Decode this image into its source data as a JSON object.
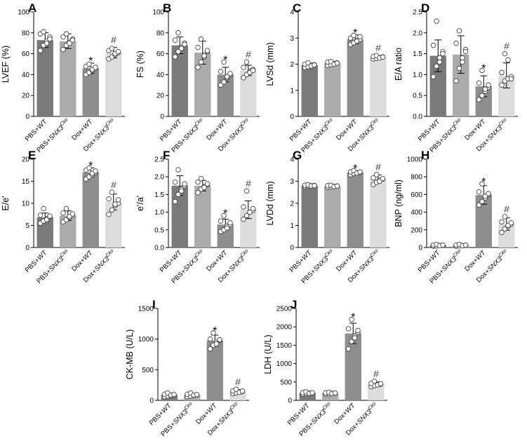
{
  "figure": {
    "categories": [
      {
        "prefix": "PBS+",
        "gene": "WT",
        "sup": ""
      },
      {
        "prefix": "PBS+",
        "gene": "SNX3",
        "sup": "Cko"
      },
      {
        "prefix": "Dox+",
        "gene": "WT",
        "sup": ""
      },
      {
        "prefix": "Dox+",
        "gene": "SNX3",
        "sup": "Cko"
      }
    ],
    "bar_colors": [
      "#7a7a7a",
      "#ababab",
      "#8e8e8e",
      "#dcdcdc"
    ],
    "sig_star": "*",
    "sig_hash": "#"
  },
  "chart_data": [
    {
      "id": "A",
      "type": "bar",
      "panel_label": "A",
      "ylabel": "LVEF (%)",
      "ylim": [
        0,
        100
      ],
      "ticks": [
        0,
        20,
        40,
        60,
        80,
        100
      ],
      "values": [
        73,
        72,
        46,
        61
      ],
      "errors": [
        7,
        7,
        5,
        5
      ],
      "points": [
        [
          63,
          68,
          72,
          76,
          79,
          81,
          70,
          74
        ],
        [
          64,
          68,
          71,
          74,
          76,
          79,
          70,
          73
        ],
        [
          40,
          42,
          44,
          46,
          48,
          50,
          45,
          47
        ],
        [
          55,
          57,
          59,
          61,
          63,
          65,
          60,
          62
        ]
      ],
      "sig": [
        "",
        "",
        "*",
        "#"
      ]
    },
    {
      "id": "B",
      "type": "bar",
      "panel_label": "B",
      "ylabel": "FS (%)",
      "ylim": [
        0,
        100
      ],
      "ticks": [
        0,
        20,
        40,
        60,
        80,
        100
      ],
      "values": [
        68,
        61,
        40,
        44
      ],
      "errors": [
        8,
        11,
        7,
        5
      ],
      "points": [
        [
          57,
          62,
          66,
          70,
          73,
          80,
          65,
          69
        ],
        [
          47,
          52,
          57,
          62,
          66,
          74,
          58,
          63
        ],
        [
          30,
          33,
          37,
          40,
          43,
          52,
          38,
          41
        ],
        [
          37,
          40,
          43,
          45,
          47,
          52,
          42,
          44
        ]
      ],
      "sig": [
        "",
        "",
        "*",
        "#"
      ]
    },
    {
      "id": "C",
      "type": "bar",
      "panel_label": "C",
      "ylabel": "LVSd (mm)",
      "ylim": [
        0,
        4
      ],
      "ticks": [
        0,
        1,
        2,
        3,
        4
      ],
      "values": [
        1.96,
        2.03,
        2.95,
        2.27
      ],
      "errors": [
        0.08,
        0.08,
        0.17,
        0.06
      ],
      "points": [
        [
          1.87,
          1.9,
          1.95,
          1.98,
          2.0,
          2.05,
          1.93,
          1.97
        ],
        [
          1.95,
          1.98,
          2.02,
          2.05,
          2.08,
          2.1,
          2.0,
          2.04
        ],
        [
          2.75,
          2.82,
          2.9,
          2.95,
          3.0,
          3.1,
          2.88,
          3.05
        ],
        [
          2.2,
          2.22,
          2.25,
          2.28,
          2.3,
          2.33,
          2.24,
          2.27
        ]
      ],
      "sig": [
        "",
        "",
        "*",
        "#"
      ]
    },
    {
      "id": "D",
      "type": "bar",
      "panel_label": "D",
      "ylabel": "E/A ratio",
      "ylim": [
        0,
        2.5
      ],
      "ticks": [
        0,
        0.5,
        1.0,
        1.5,
        2.0,
        2.5
      ],
      "values": [
        1.45,
        1.48,
        0.72,
        0.98
      ],
      "errors": [
        0.38,
        0.45,
        0.25,
        0.3
      ],
      "points": [
        [
          0.95,
          1.2,
          1.4,
          1.55,
          1.7,
          2.28,
          1.3,
          1.5
        ],
        [
          0.85,
          1.15,
          1.4,
          1.6,
          1.75,
          2.05,
          1.3,
          1.55
        ],
        [
          0.4,
          0.5,
          0.6,
          0.7,
          0.8,
          1.1,
          0.65,
          0.75
        ],
        [
          0.75,
          0.85,
          0.9,
          0.95,
          1.05,
          1.5,
          1.35,
          0.9
        ]
      ],
      "sig": [
        "",
        "",
        "*",
        "#"
      ]
    },
    {
      "id": "E",
      "type": "bar",
      "panel_label": "E",
      "ylabel": "E/e'",
      "ylim": [
        0,
        20
      ],
      "ticks": [
        0,
        5,
        10,
        15,
        20
      ],
      "values": [
        6.8,
        7.2,
        17.0,
        10.3
      ],
      "errors": [
        1.0,
        1.1,
        1.0,
        1.8
      ],
      "points": [
        [
          5.5,
          6.0,
          6.5,
          7.0,
          7.3,
          8.8,
          6.3,
          7.1
        ],
        [
          5.8,
          6.3,
          6.8,
          7.3,
          7.8,
          8.8,
          7.0,
          7.6
        ],
        [
          15.5,
          16.0,
          16.5,
          17.0,
          17.5,
          18.0,
          16.8,
          17.3
        ],
        [
          7.5,
          8.5,
          9.5,
          10.0,
          11.0,
          12.5,
          9.8,
          10.8
        ]
      ],
      "sig": [
        "",
        "",
        "*",
        "#"
      ]
    },
    {
      "id": "F",
      "type": "bar",
      "panel_label": "F",
      "ylabel": "e'/a'",
      "ylim": [
        0,
        2.5
      ],
      "ticks": [
        0,
        0.5,
        1.0,
        1.5,
        2.0,
        2.5
      ],
      "values": [
        1.75,
        1.75,
        0.65,
        1.07
      ],
      "errors": [
        0.28,
        0.15,
        0.15,
        0.25
      ],
      "points": [
        [
          1.3,
          1.5,
          1.65,
          1.75,
          1.85,
          2.2,
          1.6,
          1.8
        ],
        [
          1.55,
          1.65,
          1.72,
          1.78,
          1.85,
          1.95,
          1.7,
          1.8
        ],
        [
          0.45,
          0.5,
          0.6,
          0.65,
          0.75,
          0.9,
          0.55,
          0.7
        ],
        [
          0.8,
          0.9,
          1.0,
          1.05,
          1.15,
          1.6,
          1.0,
          1.1
        ]
      ],
      "sig": [
        "",
        "",
        "*",
        "#"
      ]
    },
    {
      "id": "G",
      "type": "bar",
      "panel_label": "G",
      "ylabel": "LVDd (mm)",
      "ylim": [
        0,
        4
      ],
      "ticks": [
        0,
        1,
        2,
        3,
        4
      ],
      "values": [
        2.8,
        2.77,
        3.4,
        3.1
      ],
      "errors": [
        0.04,
        0.05,
        0.07,
        0.18
      ],
      "points": [
        [
          2.76,
          2.78,
          2.8,
          2.81,
          2.82,
          2.84,
          2.79,
          2.8
        ],
        [
          2.72,
          2.74,
          2.76,
          2.78,
          2.8,
          2.82,
          2.75,
          2.78
        ],
        [
          3.3,
          3.35,
          3.38,
          3.4,
          3.43,
          3.48,
          3.37,
          3.42
        ],
        [
          2.85,
          2.95,
          3.05,
          3.1,
          3.15,
          3.3,
          3.0,
          3.12
        ]
      ],
      "sig": [
        "",
        "",
        "*",
        "#"
      ]
    },
    {
      "id": "H",
      "type": "bar",
      "panel_label": "H",
      "ylabel": "BNP (ng/ml)",
      "ylim": [
        0,
        1000
      ],
      "ticks": [
        0,
        200,
        400,
        600,
        800,
        1000
      ],
      "values": [
        25,
        25,
        595,
        265
      ],
      "errors": [
        10,
        10,
        105,
        70
      ],
      "points": [
        [
          15,
          18,
          22,
          25,
          28,
          35,
          20,
          27
        ],
        [
          15,
          18,
          22,
          25,
          28,
          35,
          20,
          27
        ],
        [
          480,
          520,
          560,
          600,
          630,
          720,
          580,
          610
        ],
        [
          170,
          210,
          240,
          265,
          290,
          350,
          250,
          280
        ]
      ],
      "sig": [
        "",
        "",
        "*",
        "#"
      ]
    },
    {
      "id": "I",
      "type": "bar",
      "panel_label": "I",
      "ylabel": "CK-MB (U/L)",
      "ylim": [
        0,
        1500
      ],
      "ticks": [
        0,
        500,
        1000,
        1500
      ],
      "values": [
        92,
        90,
        975,
        145
      ],
      "errors": [
        25,
        25,
        90,
        30
      ],
      "points": [
        [
          60,
          70,
          80,
          90,
          100,
          120,
          85,
          95
        ],
        [
          60,
          70,
          80,
          90,
          100,
          120,
          85,
          95
        ],
        [
          840,
          900,
          950,
          980,
          1000,
          1100,
          920,
          990
        ],
        [
          110,
          120,
          135,
          145,
          155,
          180,
          130,
          150
        ]
      ],
      "sig": [
        "",
        "",
        "*",
        "#"
      ]
    },
    {
      "id": "J",
      "type": "bar",
      "panel_label": "J",
      "ylabel": "LDH (U/L)",
      "ylim": [
        0,
        2500
      ],
      "ticks": [
        0,
        500,
        1000,
        1500,
        2000,
        2500
      ],
      "values": [
        200,
        195,
        1820,
        440
      ],
      "errors": [
        25,
        25,
        280,
        60
      ],
      "points": [
        [
          170,
          185,
          195,
          200,
          210,
          230,
          190,
          205
        ],
        [
          170,
          180,
          190,
          195,
          205,
          220,
          185,
          200
        ],
        [
          1400,
          1600,
          1750,
          1850,
          1950,
          2200,
          1700,
          1900
        ],
        [
          370,
          400,
          430,
          440,
          460,
          520,
          420,
          450
        ]
      ],
      "sig": [
        "",
        "",
        "*",
        "#"
      ]
    }
  ]
}
